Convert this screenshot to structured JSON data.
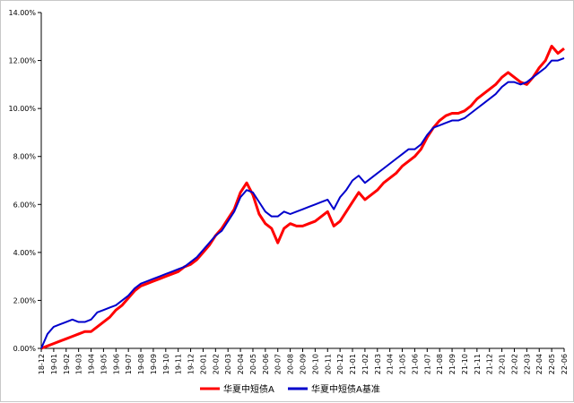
{
  "chart_data": {
    "type": "line",
    "title": "",
    "xlabel": "",
    "ylabel": "",
    "ylim": [
      0,
      0.14
    ],
    "y_ticks": [
      "0.00%",
      "2.00%",
      "4.00%",
      "6.00%",
      "8.00%",
      "10.00%",
      "12.00%",
      "14.00%"
    ],
    "x_ticks": [
      "18-12",
      "19-01",
      "19-02",
      "19-03",
      "19-04",
      "19-05",
      "19-06",
      "19-07",
      "19-08",
      "19-09",
      "19-10",
      "19-11",
      "19-12",
      "20-01",
      "20-02",
      "20-03",
      "20-04",
      "20-05",
      "20-06",
      "20-07",
      "20-08",
      "20-09",
      "20-10",
      "20-11",
      "20-12",
      "21-01",
      "21-02",
      "21-03",
      "21-04",
      "21-05",
      "21-06",
      "21-07",
      "21-08",
      "21-09",
      "21-10",
      "21-11",
      "21-12",
      "22-01",
      "22-02",
      "22-03",
      "22-04",
      "22-05",
      "22-06"
    ],
    "legend_position": "bottom",
    "grid": false,
    "series": [
      {
        "name": "华夏中短债A",
        "color": "#ff0000",
        "points": [
          [
            0,
            0.0
          ],
          [
            0.5,
            0.001
          ],
          [
            1,
            0.002
          ],
          [
            1.5,
            0.003
          ],
          [
            2,
            0.004
          ],
          [
            2.5,
            0.005
          ],
          [
            3,
            0.006
          ],
          [
            3.5,
            0.007
          ],
          [
            4,
            0.007
          ],
          [
            4.5,
            0.009
          ],
          [
            5,
            0.011
          ],
          [
            5.5,
            0.013
          ],
          [
            6,
            0.016
          ],
          [
            6.5,
            0.018
          ],
          [
            7,
            0.021
          ],
          [
            7.5,
            0.024
          ],
          [
            8,
            0.026
          ],
          [
            8.5,
            0.027
          ],
          [
            9,
            0.028
          ],
          [
            9.5,
            0.029
          ],
          [
            10,
            0.03
          ],
          [
            10.5,
            0.031
          ],
          [
            11,
            0.032
          ],
          [
            11.5,
            0.034
          ],
          [
            12,
            0.035
          ],
          [
            12.5,
            0.037
          ],
          [
            13,
            0.04
          ],
          [
            13.5,
            0.043
          ],
          [
            14,
            0.047
          ],
          [
            14.5,
            0.05
          ],
          [
            15,
            0.054
          ],
          [
            15.5,
            0.058
          ],
          [
            16,
            0.065
          ],
          [
            16.5,
            0.069
          ],
          [
            17,
            0.064
          ],
          [
            17.5,
            0.056
          ],
          [
            18,
            0.052
          ],
          [
            18.5,
            0.05
          ],
          [
            19,
            0.044
          ],
          [
            19.5,
            0.05
          ],
          [
            20,
            0.052
          ],
          [
            20.5,
            0.051
          ],
          [
            21,
            0.051
          ],
          [
            21.5,
            0.052
          ],
          [
            22,
            0.053
          ],
          [
            22.5,
            0.055
          ],
          [
            23,
            0.057
          ],
          [
            23.5,
            0.051
          ],
          [
            24,
            0.053
          ],
          [
            24.5,
            0.057
          ],
          [
            25,
            0.061
          ],
          [
            25.5,
            0.065
          ],
          [
            26,
            0.062
          ],
          [
            26.5,
            0.064
          ],
          [
            27,
            0.066
          ],
          [
            27.5,
            0.069
          ],
          [
            28,
            0.071
          ],
          [
            28.5,
            0.073
          ],
          [
            29,
            0.076
          ],
          [
            29.5,
            0.078
          ],
          [
            30,
            0.08
          ],
          [
            30.5,
            0.083
          ],
          [
            31,
            0.088
          ],
          [
            31.5,
            0.092
          ],
          [
            32,
            0.095
          ],
          [
            32.5,
            0.097
          ],
          [
            33,
            0.098
          ],
          [
            33.5,
            0.098
          ],
          [
            34,
            0.099
          ],
          [
            34.5,
            0.101
          ],
          [
            35,
            0.104
          ],
          [
            35.5,
            0.106
          ],
          [
            36,
            0.108
          ],
          [
            36.5,
            0.11
          ],
          [
            37,
            0.113
          ],
          [
            37.5,
            0.115
          ],
          [
            38,
            0.113
          ],
          [
            38.5,
            0.111
          ],
          [
            39,
            0.11
          ],
          [
            39.5,
            0.113
          ],
          [
            40,
            0.117
          ],
          [
            40.5,
            0.12
          ],
          [
            41,
            0.126
          ],
          [
            41.5,
            0.123
          ],
          [
            42,
            0.125
          ]
        ]
      },
      {
        "name": "华夏中短债A基准",
        "color": "#0000cc",
        "points": [
          [
            0,
            0.0
          ],
          [
            0.5,
            0.006
          ],
          [
            1,
            0.009
          ],
          [
            1.5,
            0.01
          ],
          [
            2,
            0.011
          ],
          [
            2.5,
            0.012
          ],
          [
            3,
            0.011
          ],
          [
            3.5,
            0.011
          ],
          [
            4,
            0.012
          ],
          [
            4.5,
            0.015
          ],
          [
            5,
            0.016
          ],
          [
            5.5,
            0.017
          ],
          [
            6,
            0.018
          ],
          [
            6.5,
            0.02
          ],
          [
            7,
            0.022
          ],
          [
            7.5,
            0.025
          ],
          [
            8,
            0.027
          ],
          [
            8.5,
            0.028
          ],
          [
            9,
            0.029
          ],
          [
            9.5,
            0.03
          ],
          [
            10,
            0.031
          ],
          [
            10.5,
            0.032
          ],
          [
            11,
            0.033
          ],
          [
            11.5,
            0.034
          ],
          [
            12,
            0.036
          ],
          [
            12.5,
            0.038
          ],
          [
            13,
            0.041
          ],
          [
            13.5,
            0.044
          ],
          [
            14,
            0.047
          ],
          [
            14.5,
            0.049
          ],
          [
            15,
            0.053
          ],
          [
            15.5,
            0.057
          ],
          [
            16,
            0.063
          ],
          [
            16.5,
            0.066
          ],
          [
            17,
            0.065
          ],
          [
            17.5,
            0.061
          ],
          [
            18,
            0.057
          ],
          [
            18.5,
            0.055
          ],
          [
            19,
            0.055
          ],
          [
            19.5,
            0.057
          ],
          [
            20,
            0.056
          ],
          [
            20.5,
            0.057
          ],
          [
            21,
            0.058
          ],
          [
            21.5,
            0.059
          ],
          [
            22,
            0.06
          ],
          [
            22.5,
            0.061
          ],
          [
            23,
            0.062
          ],
          [
            23.5,
            0.058
          ],
          [
            24,
            0.063
          ],
          [
            24.5,
            0.066
          ],
          [
            25,
            0.07
          ],
          [
            25.5,
            0.072
          ],
          [
            26,
            0.069
          ],
          [
            26.5,
            0.071
          ],
          [
            27,
            0.073
          ],
          [
            27.5,
            0.075
          ],
          [
            28,
            0.077
          ],
          [
            28.5,
            0.079
          ],
          [
            29,
            0.081
          ],
          [
            29.5,
            0.083
          ],
          [
            30,
            0.083
          ],
          [
            30.5,
            0.085
          ],
          [
            31,
            0.089
          ],
          [
            31.5,
            0.092
          ],
          [
            32,
            0.093
          ],
          [
            32.5,
            0.094
          ],
          [
            33,
            0.095
          ],
          [
            33.5,
            0.095
          ],
          [
            34,
            0.096
          ],
          [
            34.5,
            0.098
          ],
          [
            35,
            0.1
          ],
          [
            35.5,
            0.102
          ],
          [
            36,
            0.104
          ],
          [
            36.5,
            0.106
          ],
          [
            37,
            0.109
          ],
          [
            37.5,
            0.111
          ],
          [
            38,
            0.111
          ],
          [
            38.5,
            0.11
          ],
          [
            39,
            0.111
          ],
          [
            39.5,
            0.113
          ],
          [
            40,
            0.115
          ],
          [
            40.5,
            0.117
          ],
          [
            41,
            0.12
          ],
          [
            41.5,
            0.12
          ],
          [
            42,
            0.121
          ]
        ]
      }
    ]
  }
}
